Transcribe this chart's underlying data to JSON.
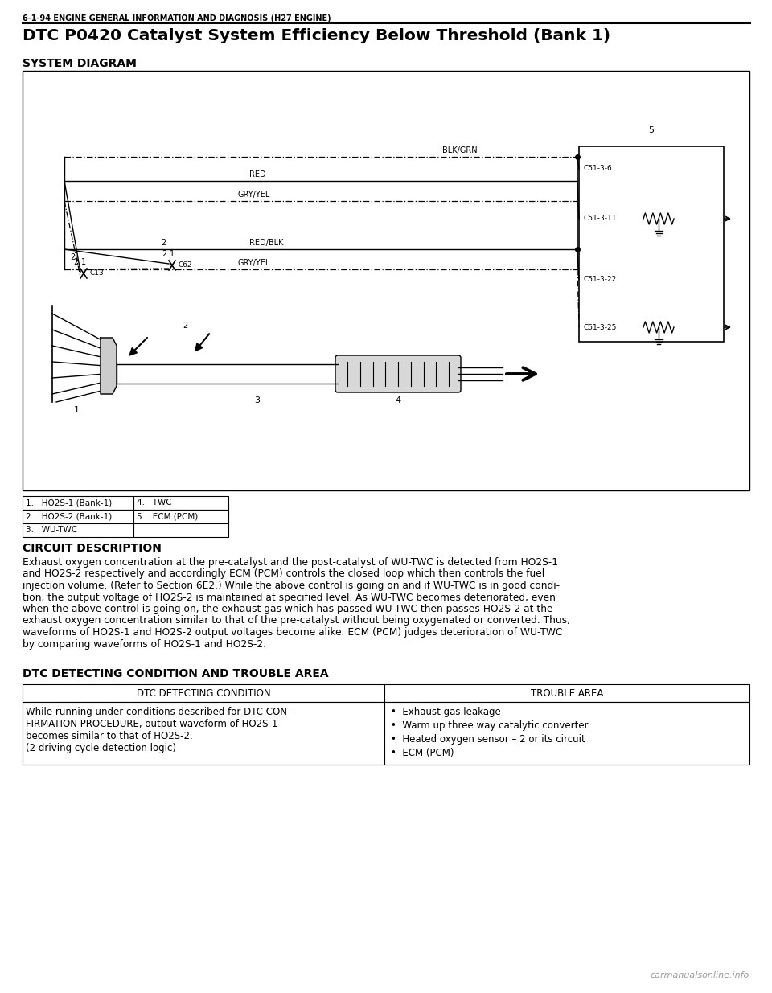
{
  "header_text": "6-1-94 ENGINE GENERAL INFORMATION AND DIAGNOSIS (H27 ENGINE)",
  "title": "DTC P0420 Catalyst System Efficiency Below Threshold (Bank 1)",
  "system_diagram_label": "SYSTEM DIAGRAM",
  "circuit_description_label": "CIRCUIT DESCRIPTION",
  "circuit_description_text": "Exhaust oxygen concentration at the pre-catalyst and the post-catalyst of WU-TWC is detected from HO2S-1 and HO2S-2 respectively and accordingly ECM (PCM) controls the closed loop which then controls the fuel injection volume. (Refer to Section 6E2.) While the above control is going on and if WU-TWC is in good condi-tion, the output voltage of HO2S-2 is maintained at specified level. As WU-TWC becomes deteriorated, even when the above control is going on, the exhaust gas which has passed WU-TWC then passes HO2S-2 at the exhaust oxygen concentration similar to that of the pre-catalyst without being oxygenated or converted. Thus, waveforms of HO2S-1 and HO2S-2 output voltages become alike. ECM (PCM) judges deterioration of WU-TWC by comparing waveforms of HO2S-1 and HO2S-2.",
  "dtc_condition_label": "DTC DETECTING CONDITION AND TROUBLE AREA",
  "table_header_left": "DTC DETECTING CONDITION",
  "table_header_right": "TROUBLE AREA",
  "table_left_lines": [
    "While running under conditions described for DTC CON-",
    "FIRMATION PROCEDURE, output waveform of HO2S-1",
    "becomes similar to that of HO2S-2.",
    "(2 driving cycle detection logic)"
  ],
  "table_right_bullets": [
    "Exhaust gas leakage",
    "Warm up three way catalytic converter",
    "Heated oxygen sensor – 2 or its circuit",
    "ECM (PCM)"
  ],
  "legend_items": [
    [
      "1.   HO2S-1 (Bank-1)",
      "4.   TWC"
    ],
    [
      "2.   HO2S-2 (Bank-1)",
      "5.   ECM (PCM)"
    ],
    [
      "3.   WU-TWC",
      ""
    ]
  ],
  "circuit_desc_lines": [
    "Exhaust oxygen concentration at the pre-catalyst and the post-catalyst of WU-TWC is detected from HO2S-1",
    "and HO2S-2 respectively and accordingly ECM (PCM) controls the closed loop which then controls the fuel",
    "injection volume. (Refer to Section 6E2.) While the above control is going on and if WU-TWC is in good condi-",
    "tion, the output voltage of HO2S-2 is maintained at specified level. As WU-TWC becomes deteriorated, even",
    "when the above control is going on, the exhaust gas which has passed WU-TWC then passes HO2S-2 at the",
    "exhaust oxygen concentration similar to that of the pre-catalyst without being oxygenated or converted. Thus,",
    "waveforms of HO2S-1 and HO2S-2 output voltages become alike. ECM (PCM) judges deterioration of WU-TWC",
    "by comparing waveforms of HO2S-1 and HO2S-2."
  ],
  "watermark": "carmanualsonline.info"
}
